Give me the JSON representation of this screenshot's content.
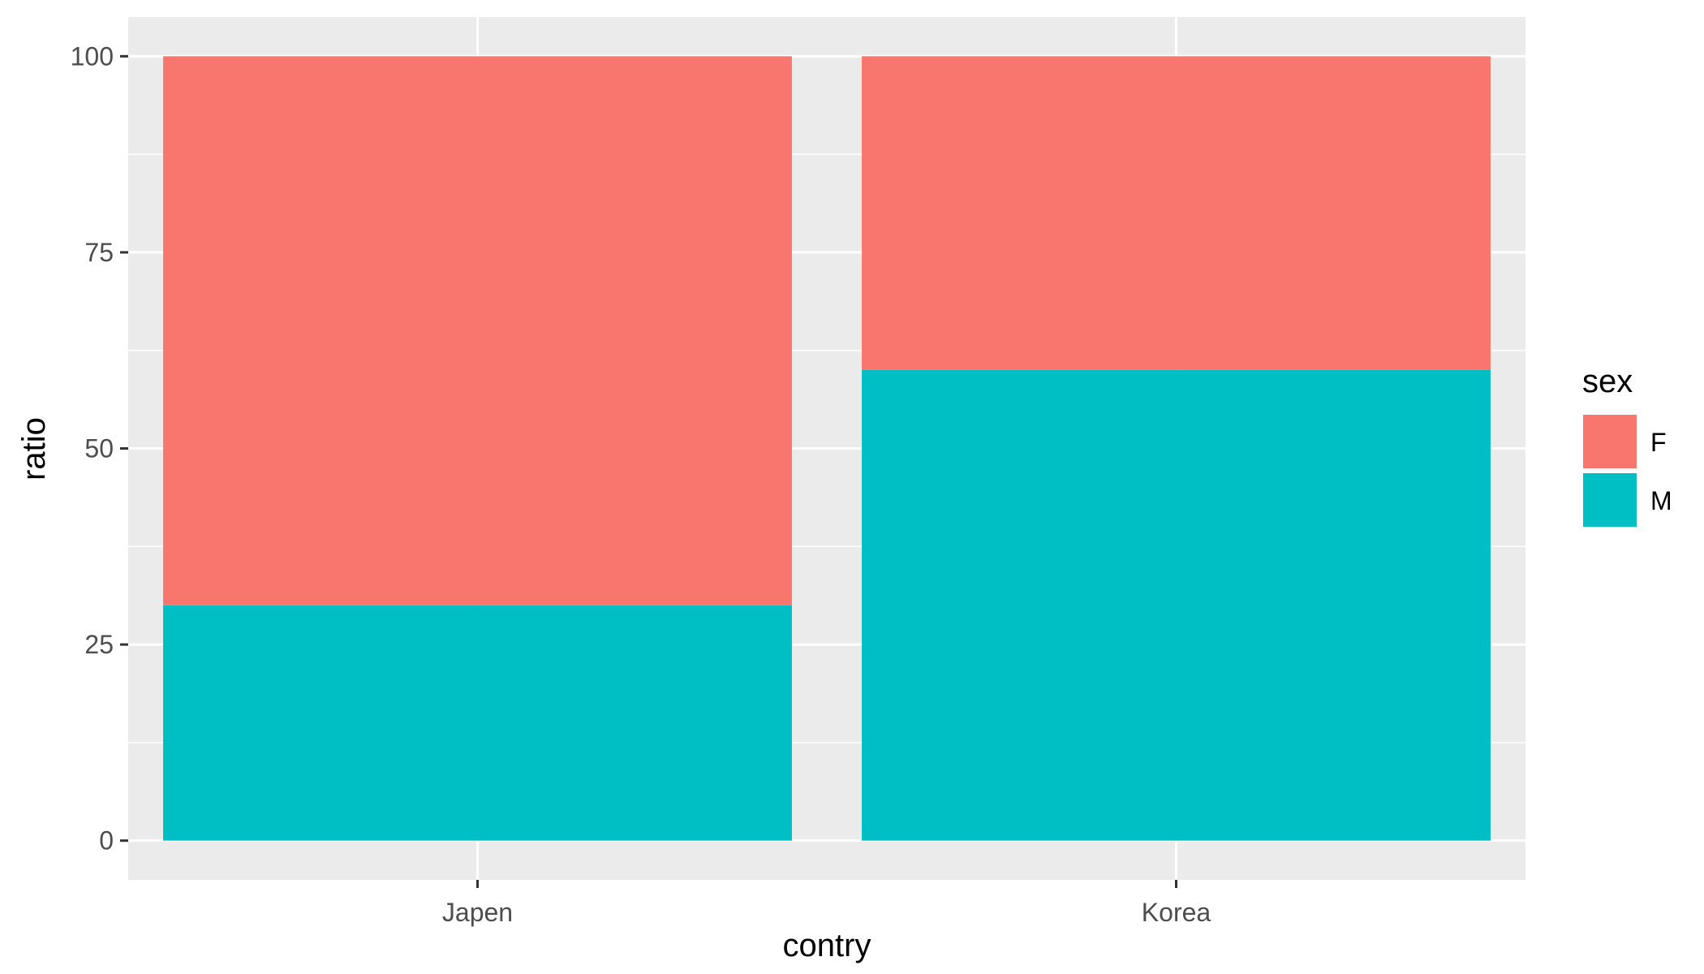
{
  "chart_data": {
    "type": "bar",
    "stacked": true,
    "categories": [
      "Japen",
      "Korea"
    ],
    "series": [
      {
        "name": "M",
        "values": [
          30,
          60
        ],
        "color": "#00BFC4"
      },
      {
        "name": "F",
        "values": [
          70,
          40
        ],
        "color": "#F8766D"
      }
    ],
    "xlabel": "contry",
    "ylabel": "ratio",
    "ylim": [
      -5,
      105
    ],
    "yticks": [
      0,
      25,
      50,
      75,
      100
    ],
    "ytick_labels": [
      "0",
      "25",
      "50",
      "75",
      "100"
    ],
    "grid": true,
    "panel_color": "#EBEBEB",
    "legend": {
      "title": "sex",
      "position": "right",
      "entries": [
        {
          "label": "F",
          "color": "#F8766D"
        },
        {
          "label": "M",
          "color": "#00BFC4"
        }
      ]
    }
  }
}
